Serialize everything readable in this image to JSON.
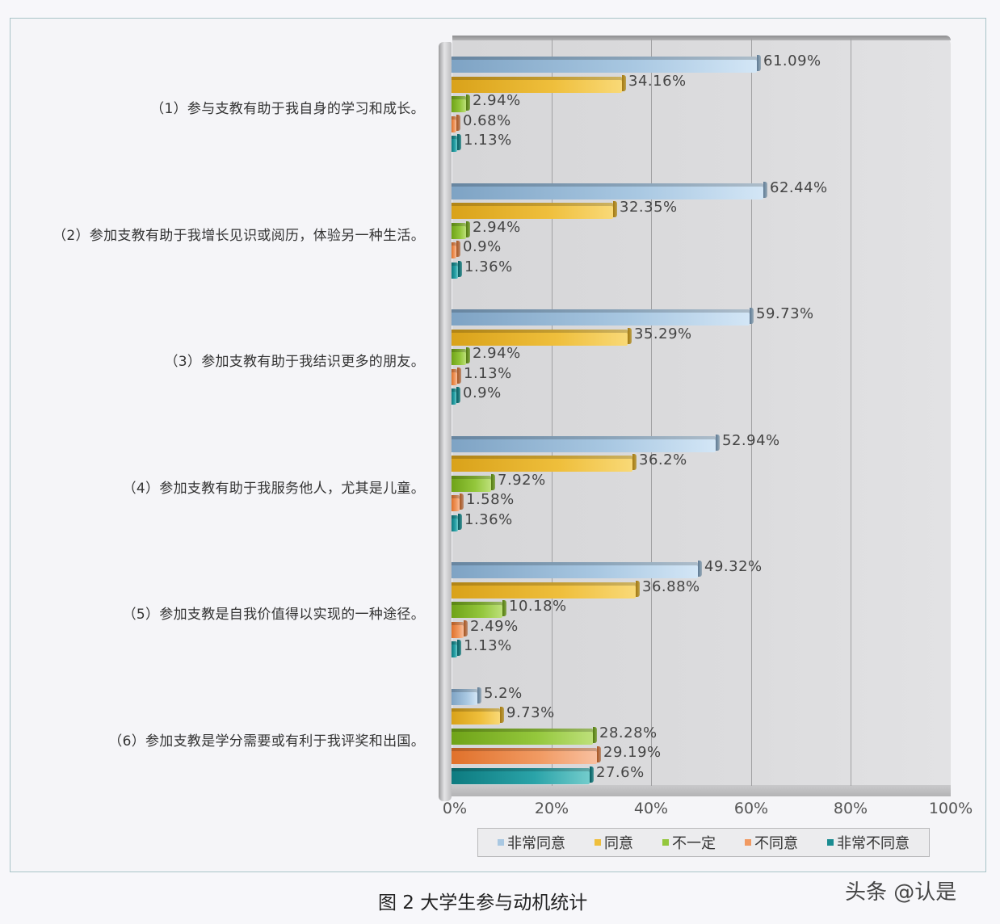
{
  "chart_data": {
    "type": "bar",
    "orientation": "horizontal",
    "style": "3d-clustered",
    "title": "图 2 大学生参与动机统计",
    "xlabel": "",
    "ylabel": "",
    "xlim": [
      0,
      100
    ],
    "x_ticks": [
      "0%",
      "20%",
      "40%",
      "60%",
      "80%",
      "100%"
    ],
    "grid": true,
    "legend_position": "bottom",
    "categories": [
      "（1）参与支教有助于我自身的学习和成长。",
      "（2）参加支教有助于我增长见识或阅历，体验另一种生活。",
      "（3）参加支教有助于我结识更多的朋友。",
      "（4）参加支教有助于我服务他人，尤其是儿童。",
      "（5）参加支教是自我价值得以实现的一种途径。",
      "（6）参加支教是学分需要或有利于我评奖和出国。"
    ],
    "series": [
      {
        "name": "非常同意",
        "color": "#a9c8e2",
        "values": [
          61.09,
          62.44,
          59.73,
          52.94,
          49.32,
          5.2
        ],
        "labels": [
          "61.09%",
          "62.44%",
          "59.73%",
          "52.94%",
          "49.32%",
          "5.2%"
        ]
      },
      {
        "name": "同意",
        "color": "#efbf3c",
        "values": [
          34.16,
          32.35,
          35.29,
          36.2,
          36.88,
          9.73
        ],
        "labels": [
          "34.16%",
          "32.35%",
          "35.29%",
          "36.2%",
          "36.88%",
          "9.73%"
        ]
      },
      {
        "name": "不一定",
        "color": "#94c73c",
        "values": [
          2.94,
          2.94,
          2.94,
          7.92,
          10.18,
          28.28
        ],
        "labels": [
          "2.94%",
          "2.94%",
          "2.94%",
          "7.92%",
          "10.18%",
          "28.28%"
        ]
      },
      {
        "name": "不同意",
        "color": "#f19a62",
        "values": [
          0.68,
          0.9,
          1.13,
          1.58,
          2.49,
          29.19
        ],
        "labels": [
          "0.68%",
          "0.9%",
          "1.13%",
          "1.58%",
          "2.49%",
          "29.19%"
        ]
      },
      {
        "name": "非常不同意",
        "color": "#2aa3a8",
        "values": [
          1.13,
          1.36,
          0.9,
          1.36,
          1.13,
          27.6
        ],
        "labels": [
          "1.13%",
          "1.36%",
          "0.9%",
          "1.36%",
          "1.13%",
          "27.6%"
        ]
      }
    ]
  },
  "caption": "图 2 大学生参与动机统计",
  "watermark": "头条 @认是",
  "legend": [
    {
      "label": "非常同意",
      "color": "#a9c8e2"
    },
    {
      "label": "同意",
      "color": "#efbf3c"
    },
    {
      "label": "不一定",
      "color": "#94c73c"
    },
    {
      "label": "不同意",
      "color": "#f19a62"
    },
    {
      "label": "非常不同意",
      "color": "#1a8c91"
    }
  ]
}
